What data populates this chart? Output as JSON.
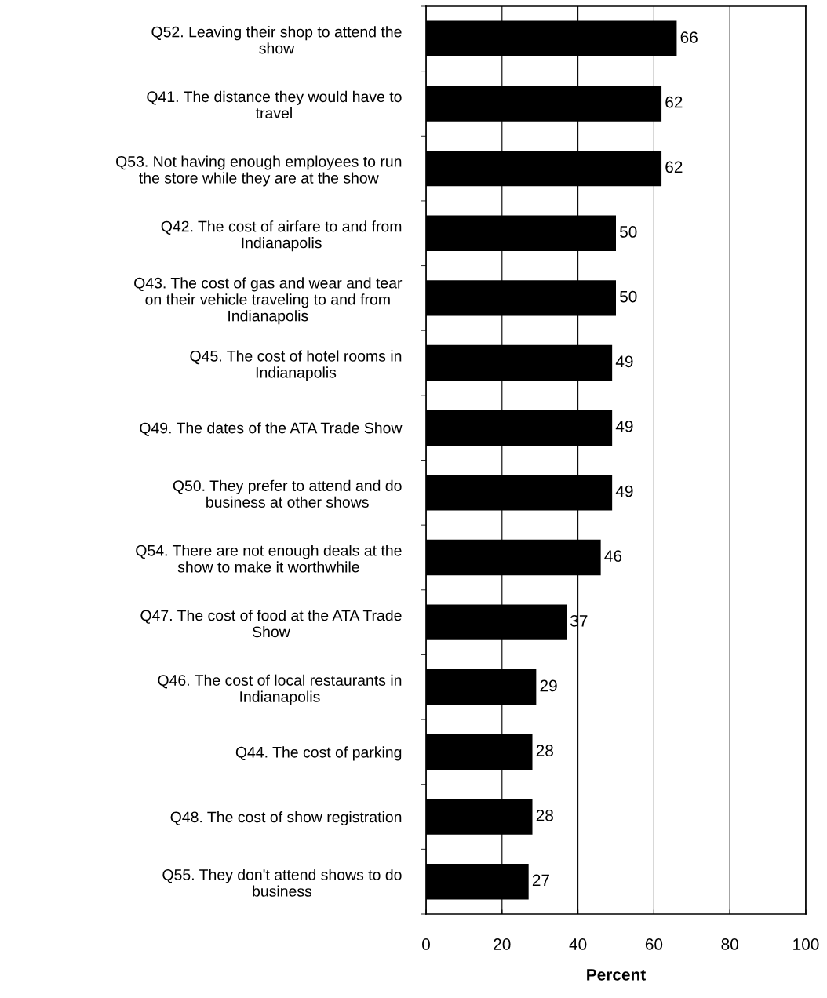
{
  "chart_data": {
    "type": "bar",
    "orientation": "horizontal",
    "xlabel": "Percent",
    "categories": [
      "Q52. Leaving their shop to attend the\nshow",
      "Q41. The distance they would have to\ntravel",
      "Q53. Not having enough employees to run\nthe store while they are at the show",
      "Q42. The cost of airfare to and from\nIndianapolis",
      "Q43. The cost of gas and wear and tear\non their vehicle traveling to and from\nIndianapolis",
      "Q45. The cost of hotel rooms in\nIndianapolis",
      "Q49. The dates of the ATA Trade Show",
      "Q50. They prefer to attend and do\nbusiness at other shows",
      "Q54. There are not enough deals at the\nshow to make it worthwhile",
      "Q47. The cost of food at the ATA Trade\nShow",
      "Q46. The cost of local restaurants in\nIndianapolis",
      "Q44. The cost of parking",
      "Q48. The cost of show registration",
      "Q55. They don't attend shows to do\nbusiness"
    ],
    "values": [
      66,
      62,
      62,
      50,
      50,
      49,
      49,
      49,
      46,
      37,
      29,
      28,
      28,
      27
    ],
    "color": "#000000",
    "xlim": [
      0,
      100
    ],
    "xticks": [
      0,
      20,
      40,
      60,
      80,
      100
    ],
    "grid": "x",
    "data_labels": true,
    "legend": false
  }
}
